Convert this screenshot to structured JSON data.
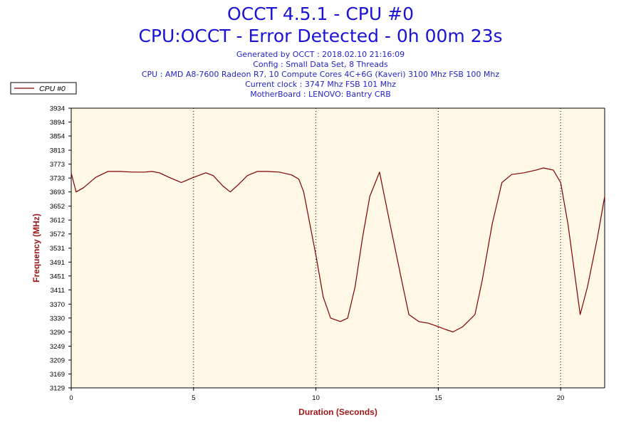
{
  "title": "OCCT 4.5.1 - CPU #0",
  "subtitle": "CPU:OCCT - Error Detected - 0h 00m 23s",
  "info_lines": [
    "Generated by OCCT : 2018.02.10 21:16:09",
    "Config : Small Data Set, 8 Threads",
    "CPU : AMD A8-7600 Radeon R7, 10 Compute Cores 4C+6G (Kaveri) 3100 Mhz FSB 100 Mhz",
    "Current clock : 3747 Mhz FSB 101 Mhz",
    "MotherBoard : LENOVO: Bantry CRB"
  ],
  "colors": {
    "title": "#1a12d6",
    "info": "#2424c8",
    "axis_label": "#a01818",
    "series": "#800000",
    "plot_bg": "#fff8e6"
  },
  "chart_data": {
    "type": "line",
    "xlabel": "Duration (Seconds)",
    "ylabel": "Frequency (MHz)",
    "xlim": [
      0,
      21.8
    ],
    "ylim": [
      3129,
      3934
    ],
    "x_ticks": [
      0,
      5,
      10,
      15,
      20
    ],
    "y_ticks": [
      3129,
      3169,
      3209,
      3249,
      3290,
      3330,
      3370,
      3411,
      3451,
      3491,
      3531,
      3572,
      3612,
      3652,
      3693,
      3733,
      3773,
      3813,
      3854,
      3894,
      3934
    ],
    "grid": "vertical dotted",
    "legend": {
      "position": "top-left"
    },
    "series": [
      {
        "name": "CPU #0",
        "x": [
          0,
          0.2,
          0.5,
          1.0,
          1.5,
          2.0,
          2.5,
          3.0,
          3.3,
          3.6,
          4.0,
          4.5,
          5.0,
          5.5,
          5.8,
          6.2,
          6.5,
          6.8,
          7.2,
          7.6,
          8.0,
          8.5,
          9.0,
          9.3,
          9.5,
          10.0,
          10.3,
          10.6,
          11.0,
          11.3,
          11.6,
          11.9,
          12.2,
          12.6,
          13.0,
          13.5,
          13.8,
          14.2,
          14.6,
          15.0,
          15.3,
          15.6,
          16.0,
          16.5,
          16.8,
          17.2,
          17.6,
          18.0,
          18.5,
          19.0,
          19.3,
          19.7,
          20.0,
          20.3,
          20.8,
          21.1,
          21.5,
          21.8
        ],
        "values": [
          3747,
          3693,
          3705,
          3735,
          3752,
          3752,
          3750,
          3750,
          3752,
          3748,
          3735,
          3720,
          3735,
          3748,
          3740,
          3710,
          3693,
          3712,
          3740,
          3752,
          3752,
          3750,
          3742,
          3730,
          3693,
          3510,
          3390,
          3330,
          3320,
          3330,
          3420,
          3560,
          3680,
          3750,
          3610,
          3440,
          3340,
          3320,
          3315,
          3305,
          3297,
          3290,
          3305,
          3340,
          3440,
          3600,
          3720,
          3743,
          3748,
          3756,
          3762,
          3756,
          3720,
          3600,
          3340,
          3420,
          3560,
          3680
        ]
      }
    ]
  }
}
